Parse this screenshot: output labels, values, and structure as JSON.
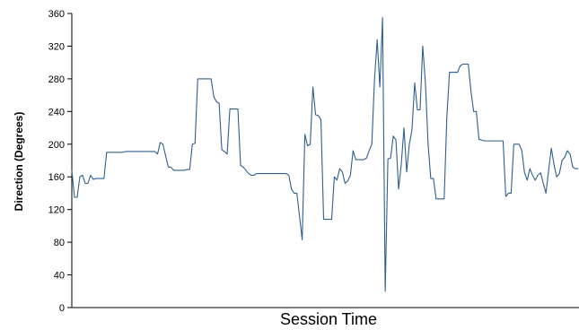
{
  "chart_data": {
    "type": "line",
    "title": "",
    "xlabel": "Session Time",
    "ylabel": "Direction (Degrees)",
    "ylim": [
      0,
      360
    ],
    "yticks": [
      0,
      40,
      80,
      120,
      160,
      200,
      240,
      280,
      320,
      360
    ],
    "grid": false,
    "legend": "none",
    "colors": {
      "line": "#2f5f8f",
      "axis": "#000000"
    },
    "series": [
      {
        "values": [
          168,
          135,
          135,
          160,
          162,
          152,
          152,
          162,
          157,
          158,
          158,
          158,
          158,
          190,
          190,
          190,
          190,
          190,
          190,
          190,
          191,
          191,
          191,
          191,
          191,
          191,
          191,
          191,
          191,
          191,
          191,
          191,
          188,
          202,
          200,
          186,
          172,
          172,
          168,
          168,
          168,
          168,
          168,
          169,
          169,
          200,
          201,
          280,
          280,
          280,
          280,
          280,
          280,
          258,
          252,
          250,
          193,
          191,
          188,
          243,
          243,
          243,
          243,
          174,
          172,
          168,
          164,
          162,
          162,
          164,
          164,
          164,
          164,
          164,
          164,
          164,
          164,
          164,
          164,
          164,
          164,
          162,
          145,
          140,
          140,
          112,
          83,
          212,
          198,
          200,
          270,
          236,
          235,
          230,
          108,
          108,
          108,
          108,
          160,
          156,
          170,
          166,
          152,
          155,
          162,
          192,
          181,
          181,
          181,
          181,
          183,
          192,
          200,
          280,
          328,
          270,
          355,
          20,
          182,
          183,
          210,
          205,
          145,
          176,
          220,
          166,
          200,
          218,
          275,
          242,
          242,
          320,
          275,
          200,
          158,
          158,
          133,
          133,
          133,
          133,
          233,
          288,
          288,
          288,
          288,
          296,
          298,
          298,
          298,
          265,
          240,
          240,
          206,
          205,
          204,
          204,
          204,
          204,
          204,
          204,
          204,
          204,
          136,
          140,
          140,
          200,
          200,
          200,
          192,
          165,
          156,
          170,
          162,
          156,
          162,
          165,
          152,
          140,
          168,
          195,
          175,
          160,
          164,
          180,
          184,
          192,
          188,
          172,
          170,
          170
        ]
      }
    ]
  }
}
